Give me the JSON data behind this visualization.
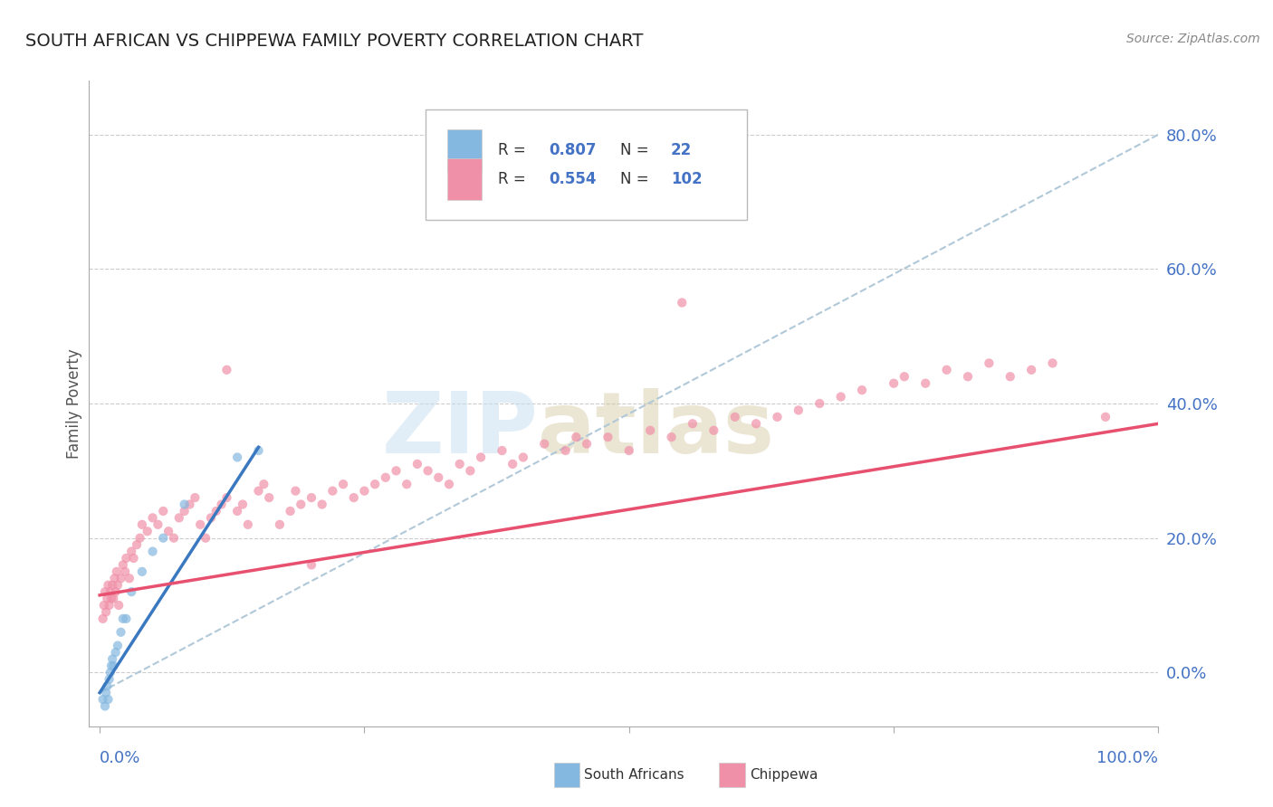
{
  "title": "SOUTH AFRICAN VS CHIPPEWA FAMILY POVERTY CORRELATION CHART",
  "source": "Source: ZipAtlas.com",
  "ylabel": "Family Poverty",
  "watermark_zip": "ZIP",
  "watermark_atlas": "atlas",
  "south_african_color": "#85b8e0",
  "chippewa_color": "#f090a8",
  "trend_sa_color": "#3a78c0",
  "trend_ch_color": "#e85070",
  "trend_dashed_color": "#b0c8d8",
  "background_color": "#ffffff",
  "grid_color": "#cccccc",
  "right_tick_color": "#4472c4",
  "title_color": "#222222",
  "source_color": "#888888",
  "ylabel_color": "#555555",
  "ytick_labels": [
    "0.0%",
    "20.0%",
    "40.0%",
    "60.0%",
    "80.0%"
  ],
  "ytick_values": [
    0.0,
    0.2,
    0.4,
    0.6,
    0.8
  ],
  "xlim": [
    -0.01,
    1.0
  ],
  "ylim": [
    -0.08,
    0.88
  ],
  "sa_x": [
    0.003,
    0.005,
    0.006,
    0.007,
    0.008,
    0.009,
    0.01,
    0.011,
    0.012,
    0.013,
    0.015,
    0.017,
    0.02,
    0.022,
    0.025,
    0.03,
    0.04,
    0.05,
    0.06,
    0.08,
    0.13,
    0.15
  ],
  "sa_y": [
    -0.04,
    -0.05,
    -0.03,
    -0.02,
    -0.04,
    -0.01,
    0.0,
    0.01,
    0.02,
    0.01,
    0.03,
    0.04,
    0.06,
    0.08,
    0.08,
    0.12,
    0.15,
    0.18,
    0.2,
    0.25,
    0.32,
    0.33
  ],
  "ch_x": [
    0.003,
    0.004,
    0.005,
    0.006,
    0.007,
    0.008,
    0.009,
    0.01,
    0.011,
    0.012,
    0.013,
    0.014,
    0.015,
    0.016,
    0.017,
    0.018,
    0.02,
    0.022,
    0.024,
    0.025,
    0.028,
    0.03,
    0.032,
    0.035,
    0.038,
    0.04,
    0.045,
    0.05,
    0.055,
    0.06,
    0.065,
    0.07,
    0.075,
    0.08,
    0.085,
    0.09,
    0.095,
    0.1,
    0.105,
    0.11,
    0.115,
    0.12,
    0.13,
    0.135,
    0.14,
    0.15,
    0.155,
    0.16,
    0.17,
    0.18,
    0.185,
    0.19,
    0.2,
    0.21,
    0.22,
    0.23,
    0.24,
    0.25,
    0.26,
    0.27,
    0.28,
    0.29,
    0.3,
    0.31,
    0.32,
    0.33,
    0.34,
    0.35,
    0.36,
    0.38,
    0.39,
    0.4,
    0.42,
    0.44,
    0.45,
    0.46,
    0.48,
    0.5,
    0.52,
    0.54,
    0.55,
    0.56,
    0.58,
    0.6,
    0.62,
    0.64,
    0.66,
    0.68,
    0.7,
    0.72,
    0.75,
    0.76,
    0.78,
    0.8,
    0.82,
    0.84,
    0.86,
    0.88,
    0.9,
    0.95,
    0.12,
    0.2
  ],
  "ch_y": [
    0.08,
    0.1,
    0.12,
    0.09,
    0.11,
    0.13,
    0.1,
    0.12,
    0.11,
    0.13,
    0.11,
    0.14,
    0.12,
    0.15,
    0.13,
    0.1,
    0.14,
    0.16,
    0.15,
    0.17,
    0.14,
    0.18,
    0.17,
    0.19,
    0.2,
    0.22,
    0.21,
    0.23,
    0.22,
    0.24,
    0.21,
    0.2,
    0.23,
    0.24,
    0.25,
    0.26,
    0.22,
    0.2,
    0.23,
    0.24,
    0.25,
    0.26,
    0.24,
    0.25,
    0.22,
    0.27,
    0.28,
    0.26,
    0.22,
    0.24,
    0.27,
    0.25,
    0.26,
    0.25,
    0.27,
    0.28,
    0.26,
    0.27,
    0.28,
    0.29,
    0.3,
    0.28,
    0.31,
    0.3,
    0.29,
    0.28,
    0.31,
    0.3,
    0.32,
    0.33,
    0.31,
    0.32,
    0.34,
    0.33,
    0.35,
    0.34,
    0.35,
    0.33,
    0.36,
    0.35,
    0.55,
    0.37,
    0.36,
    0.38,
    0.37,
    0.38,
    0.39,
    0.4,
    0.41,
    0.42,
    0.43,
    0.44,
    0.43,
    0.45,
    0.44,
    0.46,
    0.44,
    0.45,
    0.46,
    0.38,
    0.45,
    0.16
  ],
  "sa_trend_x": [
    0.0,
    0.15
  ],
  "sa_trend_y": [
    -0.03,
    0.335
  ],
  "ch_trend_x": [
    0.0,
    1.0
  ],
  "ch_trend_y": [
    0.115,
    0.37
  ],
  "dash_trend_x": [
    0.0,
    1.0
  ],
  "dash_trend_y": [
    -0.03,
    0.8
  ]
}
